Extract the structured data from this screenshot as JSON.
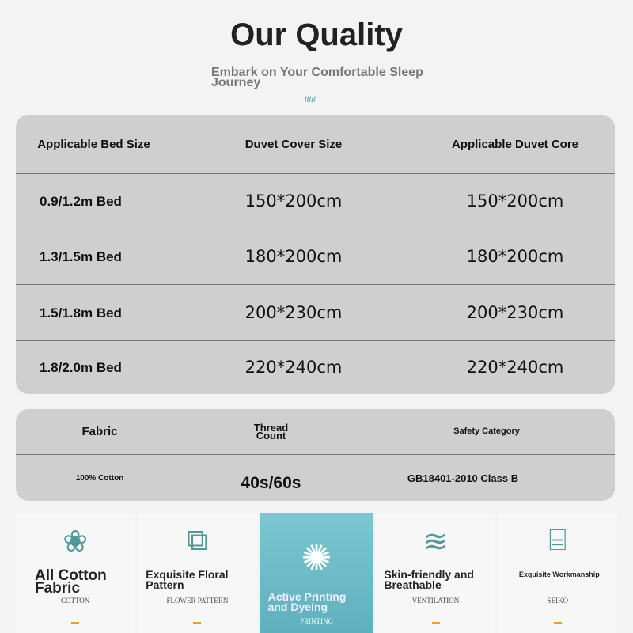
{
  "header": {
    "title": "Our Quality",
    "subtitle": "Embark on Your Comfortable Sleep Journey",
    "decoration": "/////"
  },
  "size_table": {
    "headers": [
      "Applicable Bed Size",
      "Duvet Cover Size",
      "Applicable Duvet Core"
    ],
    "rows": [
      [
        "0.9/1.2m Bed",
        "150*200cm",
        "150*200cm"
      ],
      [
        "1.3/1.5m Bed",
        "180*200cm",
        "180*200cm"
      ],
      [
        "1.5/1.8m Bed",
        "200*230cm",
        "200*230cm"
      ],
      [
        "1.8/2.0m Bed",
        "220*240cm",
        "220*240cm"
      ]
    ]
  },
  "fabric_table": {
    "headers": [
      "Fabric",
      "Thread Count",
      "Safety Category"
    ],
    "row": [
      "100% Cotton",
      "40s/60s",
      "GB18401-2010 Class B"
    ]
  },
  "features": [
    {
      "icon": "cotton-icon",
      "glyph": "❀",
      "title": "All Cotton Fabric",
      "subtitle": "COTTON"
    },
    {
      "icon": "floral-pattern-icon",
      "glyph": "⧉",
      "title": "Exquisite Floral Pattern",
      "subtitle": "FLOWER PATTERN"
    },
    {
      "icon": "flower-icon",
      "glyph": "✺",
      "title": "Active Printing and Dyeing",
      "subtitle": "PRINTING"
    },
    {
      "icon": "ventilation-icon",
      "glyph": "≋",
      "title": "Skin-friendly and Breathable",
      "subtitle": "VENTILATION"
    },
    {
      "icon": "thread-spool-icon",
      "glyph": "⌸",
      "title": "Exquisite Workmanship",
      "subtitle": "SEIKO"
    }
  ],
  "colors": {
    "accent": "#5fb0bd",
    "icon": "#4e9a9a",
    "dash": "#f0a020",
    "table": "#cfcfcf"
  }
}
